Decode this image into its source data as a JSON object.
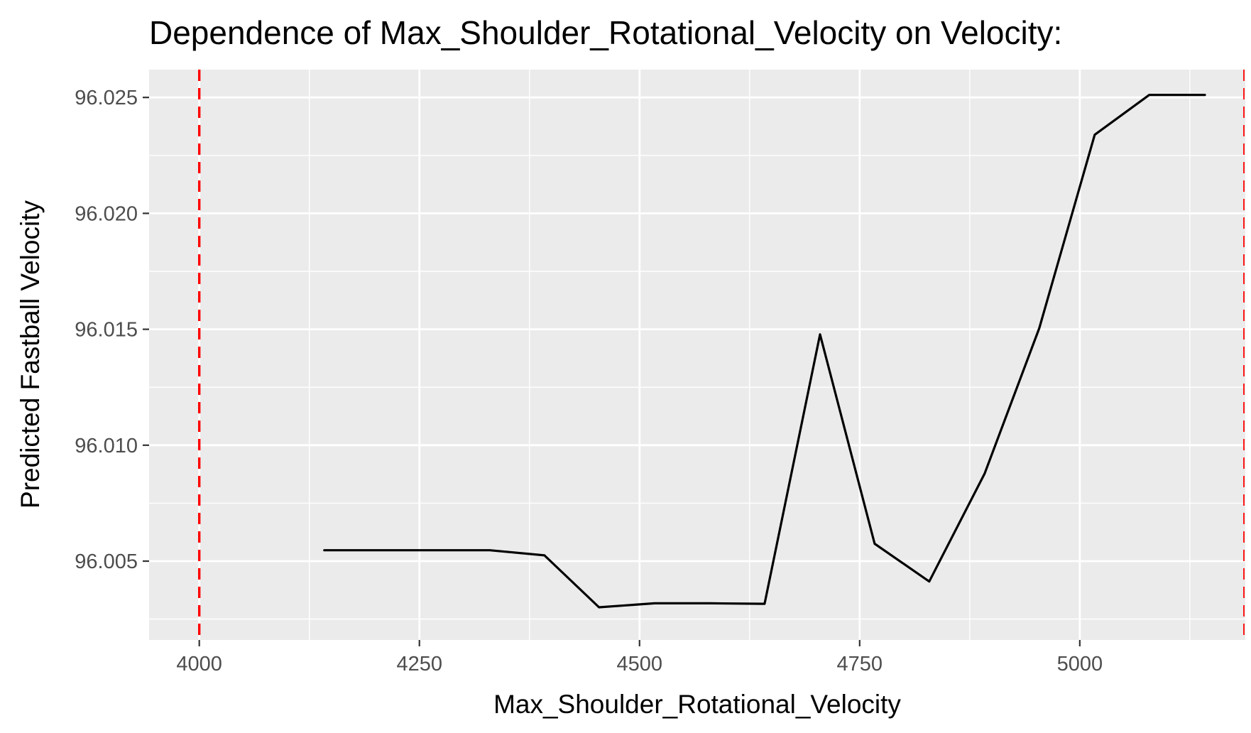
{
  "chart_data": {
    "type": "line",
    "title": "Dependence of Max_Shoulder_Rotational_Velocity on Velocity:",
    "xlabel": "Max_Shoulder_Rotational_Velocity",
    "ylabel": "Predicted Fastball Velocity",
    "xlim": [
      3943,
      5188
    ],
    "ylim": [
      96.0016,
      96.0262
    ],
    "xticks": [
      4000,
      4250,
      4500,
      4750,
      5000
    ],
    "xtick_labels": [
      "4000",
      "4250",
      "4500",
      "4750",
      "5000"
    ],
    "yticks": [
      96.005,
      96.01,
      96.015,
      96.02,
      96.025
    ],
    "ytick_labels": [
      "96.005",
      "96.010",
      "96.015",
      "96.020",
      "96.025"
    ],
    "grid": true,
    "series": [
      {
        "x": [
          4142,
          4205,
          4267,
          4330,
          4392,
          4454,
          4517,
          4580,
          4642,
          4705,
          4767,
          4829,
          4892,
          4954,
          5017,
          5079,
          5142
        ],
        "y": [
          96.00547,
          96.00547,
          96.00547,
          96.00547,
          96.00525,
          96.00301,
          96.00318,
          96.00318,
          96.00316,
          96.01478,
          96.00575,
          96.00412,
          96.00878,
          96.01505,
          96.02339,
          96.02511,
          96.02511
        ]
      }
    ],
    "reference_lines": [
      {
        "axis": "x",
        "value": 4000,
        "style": "dashed",
        "color": "#ff0000"
      },
      {
        "axis": "x",
        "value": 5188,
        "style": "dashed",
        "color": "#ff0000"
      }
    ],
    "colors": {
      "panel_background": "#ebebeb",
      "grid": "#ffffff",
      "line": "#000000",
      "reference_line": "#ff0000",
      "tick_text": "#4d4d4d"
    }
  }
}
